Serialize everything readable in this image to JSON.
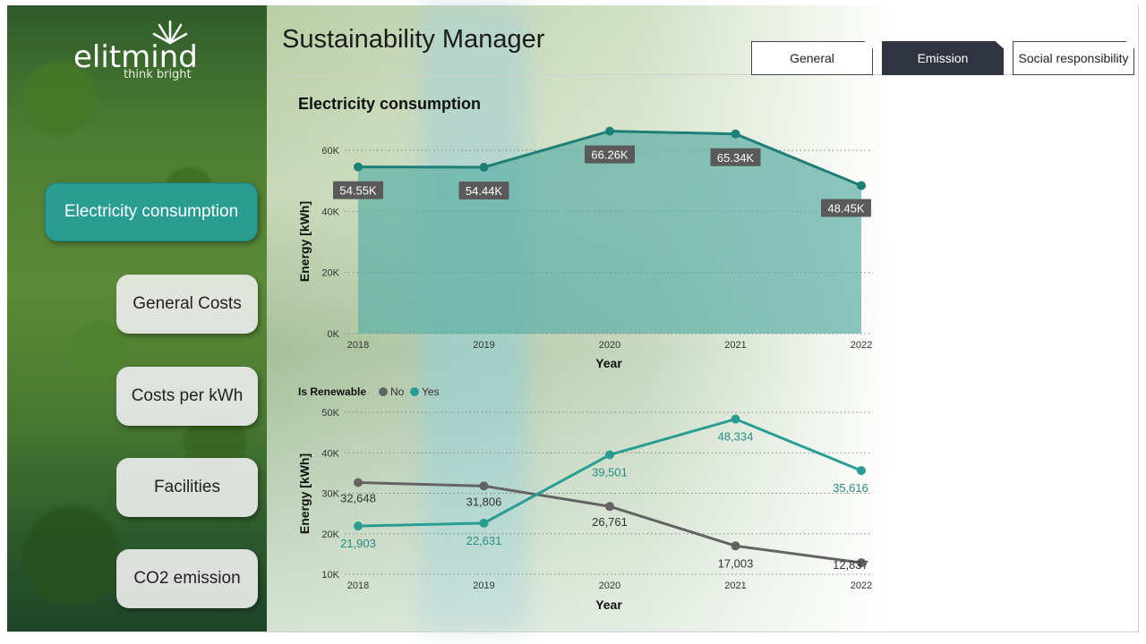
{
  "app": {
    "title": "Sustainability Manager",
    "logo_text": "elitmind",
    "logo_tagline": "think bright"
  },
  "tabs": [
    {
      "label": "General",
      "active": false
    },
    {
      "label": "Emission",
      "active": true
    },
    {
      "label": "Social responsibility",
      "active": false
    }
  ],
  "nav": [
    {
      "label": "Electricity consumption",
      "active": true
    },
    {
      "label": "General Costs",
      "active": false
    },
    {
      "label": "Costs per kWh",
      "active": false
    },
    {
      "label": "Facilities",
      "active": false
    },
    {
      "label": "CO2 emission",
      "active": false
    }
  ],
  "colors": {
    "accent": "#2a9d93",
    "dark_series": "#636363",
    "tab_active_bg": "#303342",
    "area_fill": "#5fb0a6"
  },
  "chart_data": [
    {
      "type": "area",
      "title": "Electricity consumption",
      "xlabel": "Year",
      "ylabel": "Energy [kWh]",
      "categories": [
        "2018",
        "2019",
        "2020",
        "2021",
        "2022"
      ],
      "values": [
        54550,
        54440,
        66260,
        65340,
        48450
      ],
      "data_labels": [
        "54.55K",
        "54.44K",
        "66.26K",
        "65.34K",
        "48.45K"
      ],
      "yticks": [
        "0K",
        "20K",
        "40K",
        "60K"
      ],
      "ylim": [
        0,
        70000
      ],
      "grid": true
    },
    {
      "type": "line",
      "title": "",
      "legend_title": "Is Renewable",
      "legend_position": "top-left",
      "xlabel": "Year",
      "ylabel": "Energy [kWh]",
      "categories": [
        "2018",
        "2019",
        "2020",
        "2021",
        "2022"
      ],
      "series": [
        {
          "name": "No",
          "values": [
            32648,
            31806,
            26761,
            17003,
            12837
          ],
          "labels": [
            "32,648",
            "31,806",
            "26,761",
            "17,003",
            "12,837"
          ],
          "color": "#636363"
        },
        {
          "name": "Yes",
          "values": [
            21903,
            22631,
            39501,
            48334,
            35616
          ],
          "labels": [
            "21,903",
            "22,631",
            "39,501",
            "48,334",
            "35,616"
          ],
          "color": "#2a9d93"
        }
      ],
      "yticks": [
        "10K",
        "20K",
        "30K",
        "40K",
        "50K"
      ],
      "ylim": [
        10000,
        50000
      ],
      "grid": true
    }
  ]
}
